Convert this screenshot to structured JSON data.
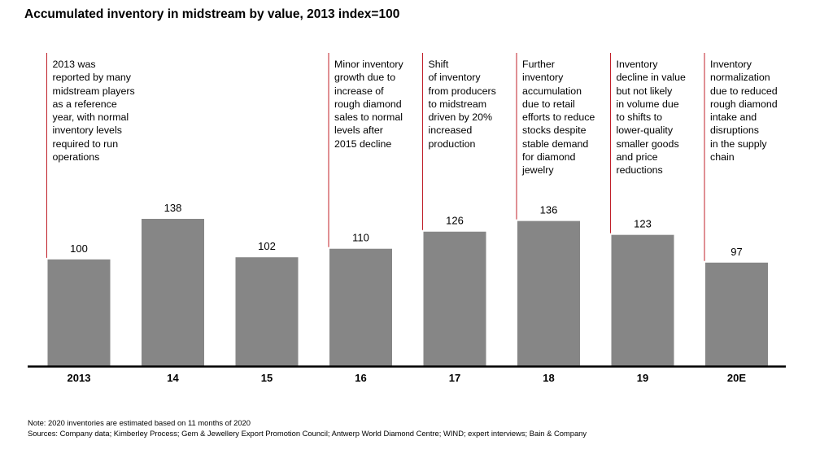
{
  "chart_data": {
    "type": "bar",
    "title": "Accumulated inventory in midstream by value, 2013 index=100",
    "categories": [
      "2013",
      "14",
      "15",
      "16",
      "17",
      "18",
      "19",
      "20E"
    ],
    "values": [
      100,
      138,
      102,
      110,
      126,
      136,
      123,
      97
    ],
    "ylim": [
      0,
      138
    ],
    "grid": false,
    "bar_color": "#868686",
    "annotation_line_color": "#c0202a",
    "annotations": [
      {
        "category": "2013",
        "text": "2013 was\nreported by many\nmidstream players\nas a reference\nyear, with normal\ninventory levels\nrequired to run\noperations"
      },
      {
        "category": "16",
        "text": "Minor inventory\ngrowth due to\nincrease of\nrough diamond\nsales to normal\nlevels after\n2015 decline"
      },
      {
        "category": "17",
        "text": "Shift\nof inventory\nfrom producers\nto midstream\ndriven by 20%\nincreased\nproduction"
      },
      {
        "category": "18",
        "text": "Further\ninventory\naccumulation\ndue to retail\nefforts to reduce\nstocks despite\nstable demand\nfor diamond\njewelry"
      },
      {
        "category": "19",
        "text": "Inventory\ndecline in value\nbut not likely\nin volume due\nto shifts to\nlower-quality\nsmaller goods\nand price\nreductions"
      },
      {
        "category": "20E",
        "text": "Inventory\nnormalization\ndue to reduced\nrough diamond\nintake and\ndisruptions\nin the supply\nchain"
      }
    ]
  },
  "notes": {
    "note": "Note: 2020 inventories are estimated based on 11 months of 2020",
    "sources": "Sources: Company data; Kimberley Process; Gem & Jewellery Export Promotion Council;  Antwerp World Diamond Centre; WIND; expert interviews; Bain & Company"
  }
}
